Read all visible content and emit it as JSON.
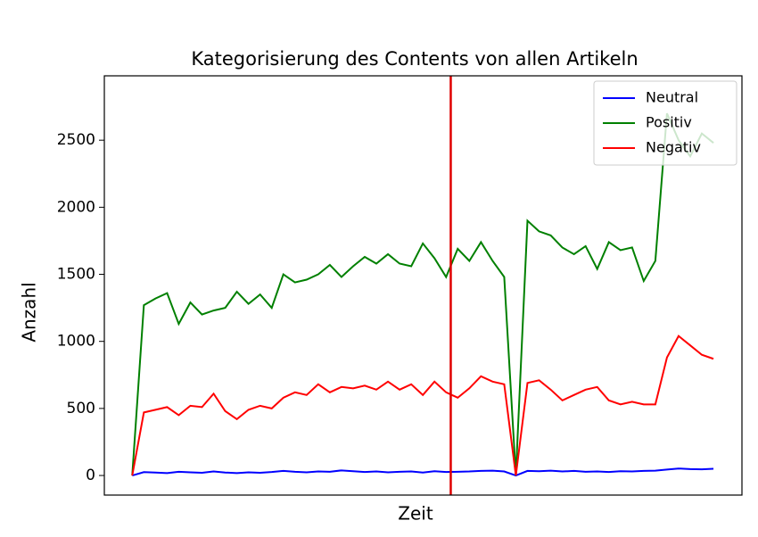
{
  "chart_data": {
    "type": "line",
    "title": "Kategorisierung des Contents von allen Artikeln",
    "xlabel": "Zeit",
    "ylabel": "Anzahl",
    "x": [
      0,
      2,
      4,
      6,
      8,
      10,
      12,
      14,
      16,
      18,
      20,
      22,
      24,
      26,
      28,
      30,
      32,
      34,
      36,
      38,
      40,
      42,
      44,
      46,
      48,
      50,
      52,
      54,
      56,
      58,
      60,
      62,
      64,
      66,
      68,
      70,
      72,
      74,
      76,
      78,
      80,
      82,
      84,
      86,
      88,
      90,
      92,
      94,
      96,
      98,
      100
    ],
    "xlim": [
      -4.8,
      104.9
    ],
    "ylim": [
      -146,
      2980
    ],
    "yticks": [
      0,
      500,
      1000,
      1500,
      2000,
      2500
    ],
    "grid": false,
    "legend": "upper right",
    "vline": {
      "x": 54.8,
      "color": "#e00000"
    },
    "series": [
      {
        "name": "Neutral",
        "color": "#0000ff",
        "values": [
          0,
          25,
          22,
          18,
          28,
          24,
          20,
          30,
          22,
          18,
          24,
          20,
          26,
          34,
          28,
          24,
          30,
          28,
          38,
          32,
          26,
          30,
          24,
          28,
          30,
          22,
          32,
          26,
          28,
          30,
          34,
          36,
          30,
          0,
          34,
          32,
          36,
          30,
          34,
          28,
          30,
          26,
          32,
          30,
          34,
          36,
          44,
          52,
          48,
          46,
          50
        ]
      },
      {
        "name": "Positiv",
        "color": "#008000",
        "values": [
          0,
          1270,
          1320,
          1360,
          1130,
          1290,
          1200,
          1230,
          1250,
          1370,
          1280,
          1350,
          1250,
          1500,
          1440,
          1460,
          1500,
          1570,
          1480,
          1560,
          1630,
          1580,
          1650,
          1580,
          1560,
          1730,
          1620,
          1480,
          1690,
          1600,
          1740,
          1600,
          1480,
          0,
          1900,
          1820,
          1790,
          1700,
          1650,
          1710,
          1540,
          1740,
          1680,
          1700,
          1450,
          1600,
          2700,
          2500,
          2380,
          2550,
          2480
        ]
      },
      {
        "name": "Negativ",
        "color": "#ff0000",
        "values": [
          0,
          470,
          490,
          510,
          450,
          520,
          510,
          610,
          480,
          420,
          490,
          520,
          500,
          580,
          620,
          600,
          680,
          620,
          660,
          650,
          670,
          640,
          700,
          640,
          680,
          600,
          700,
          620,
          580,
          650,
          740,
          700,
          680,
          0,
          690,
          710,
          640,
          560,
          600,
          640,
          660,
          560,
          530,
          550,
          530,
          530,
          880,
          1040,
          970,
          900,
          870
        ]
      }
    ]
  }
}
